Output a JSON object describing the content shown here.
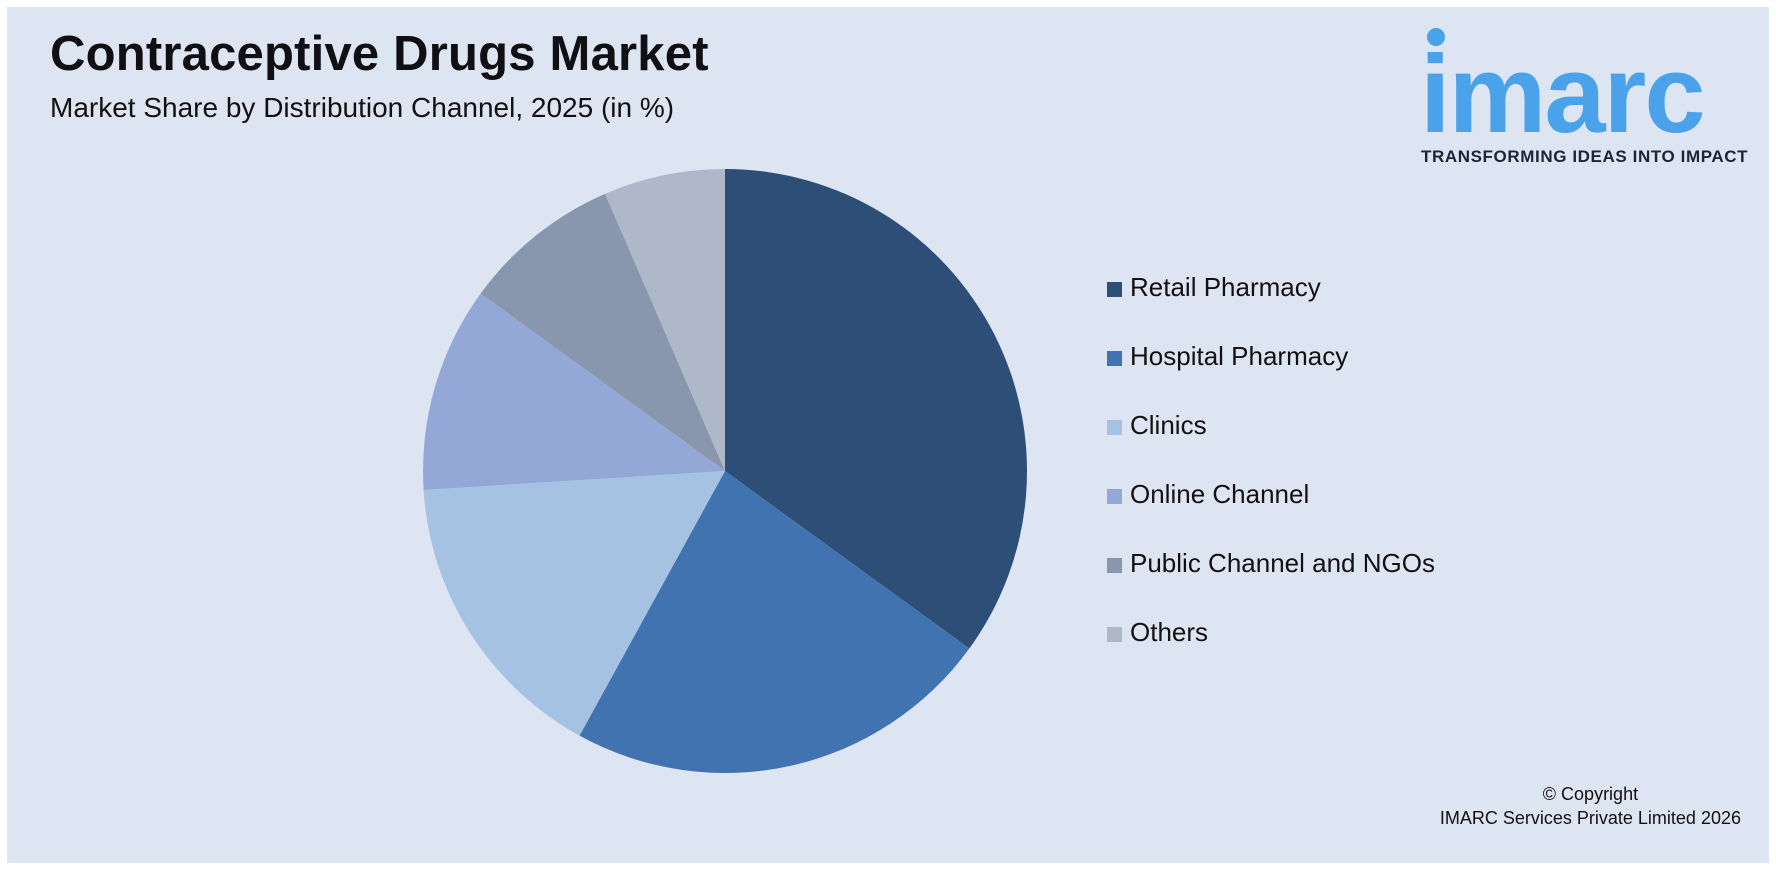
{
  "header": {
    "title": "Contraceptive Drugs Market",
    "subtitle": "Market Share by Distribution Channel, 2025 (in %)"
  },
  "logo": {
    "wordmark": "imarc",
    "tagline": "TRANSFORMING IDEAS INTO IMPACT",
    "color": "#4aa3ea"
  },
  "chart_data": {
    "type": "pie",
    "title": "Contraceptive Drugs Market",
    "subtitle": "Market Share by Distribution Channel, 2025 (in %)",
    "start_angle_deg": 0,
    "direction": "clockwise",
    "legend_position": "right",
    "slices": [
      {
        "label": "Retail Pharmacy",
        "value": 35,
        "color": "#2c4e77"
      },
      {
        "label": "Hospital Pharmacy",
        "value": 23,
        "color": "#4173b0"
      },
      {
        "label": "Clinics",
        "value": 16,
        "color": "#a6c2e2"
      },
      {
        "label": "Online Channel",
        "value": 11,
        "color": "#94a8d8"
      },
      {
        "label": "Public Channel and NGOs",
        "value": 8.5,
        "color": "#8897ae"
      },
      {
        "label": "Others",
        "value": 6.5,
        "color": "#aeb8c8"
      }
    ]
  },
  "footer": {
    "copyright_line1": "© Copyright",
    "copyright_line2": "IMARC Services Private Limited 2026"
  }
}
